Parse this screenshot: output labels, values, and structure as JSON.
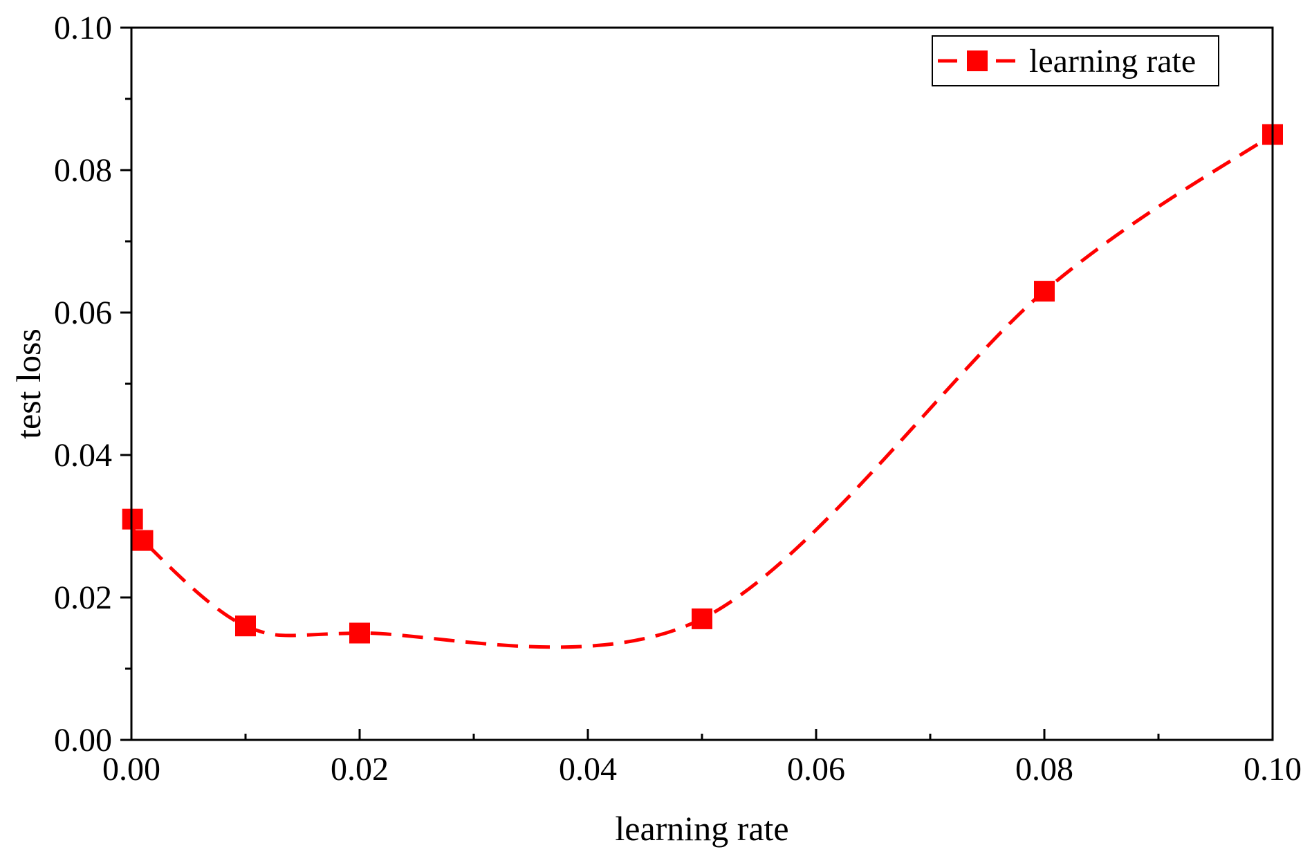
{
  "chart_data": {
    "type": "line",
    "xlabel": "learning rate",
    "ylabel": "test loss",
    "xlim": [
      0,
      0.1
    ],
    "ylim": [
      0,
      0.1
    ],
    "x_ticks": [
      "0.00",
      "0.02",
      "0.04",
      "0.06",
      "0.08",
      "0.10"
    ],
    "y_ticks": [
      "0.00",
      "0.02",
      "0.04",
      "0.06",
      "0.08",
      "0.10"
    ],
    "x_tick_values": [
      0,
      0.02,
      0.04,
      0.06,
      0.08,
      0.1
    ],
    "y_tick_values": [
      0,
      0.02,
      0.04,
      0.06,
      0.08,
      0.1
    ],
    "x_minor_values": [
      0.01,
      0.03,
      0.05,
      0.07,
      0.09
    ],
    "y_minor_values": [
      0.01,
      0.03,
      0.05,
      0.07,
      0.09
    ],
    "grid": false,
    "legend_position": "top-right",
    "series": [
      {
        "name": "learning rate",
        "color": "#ff0000",
        "line_style": "dashed",
        "marker": "square",
        "x": [
          0.0001,
          0.001,
          0.01,
          0.02,
          0.05,
          0.08,
          0.1
        ],
        "y": [
          0.031,
          0.028,
          0.016,
          0.015,
          0.017,
          0.063,
          0.085
        ]
      }
    ]
  }
}
